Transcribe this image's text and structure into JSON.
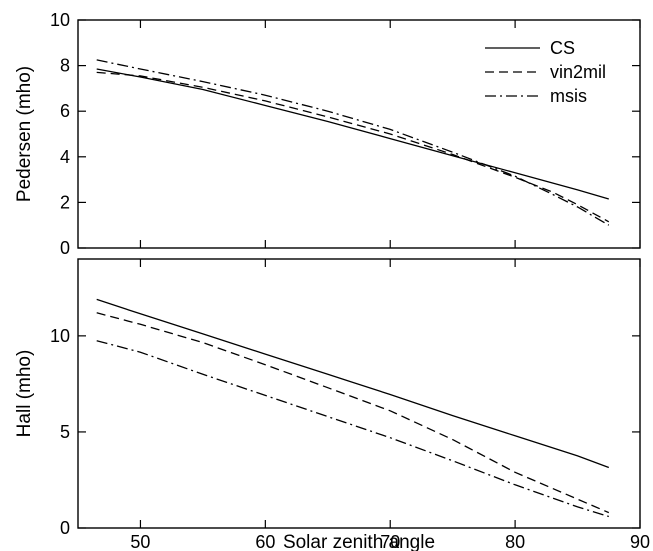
{
  "chart_data": [
    {
      "type": "line",
      "ylabel": "Pedersen (mho)",
      "xlabel": "",
      "xlim": [
        45,
        90
      ],
      "ylim": [
        0,
        10
      ],
      "xticks": [
        50,
        60,
        70,
        80,
        90
      ],
      "yticks": [
        0,
        2,
        4,
        6,
        8,
        10
      ],
      "show_x_tick_labels": false,
      "legend": "top-right",
      "series": [
        {
          "name": "CS",
          "style": "solid",
          "x": [
            46.5,
            50,
            55,
            60,
            65,
            70,
            75,
            80,
            85,
            87.5
          ],
          "y": [
            7.85,
            7.5,
            6.95,
            6.25,
            5.55,
            4.8,
            4.05,
            3.3,
            2.55,
            2.15
          ]
        },
        {
          "name": "vin2mil",
          "style": "dashed",
          "x": [
            46.5,
            50,
            55,
            60,
            65,
            70,
            75,
            80,
            83,
            85,
            87.5
          ],
          "y": [
            7.7,
            7.55,
            7.05,
            6.45,
            5.75,
            5.0,
            4.1,
            3.1,
            2.45,
            1.9,
            1.15
          ]
        },
        {
          "name": "msis",
          "style": "dashdot",
          "x": [
            46.5,
            50,
            55,
            60,
            65,
            70,
            75,
            80,
            83,
            85,
            87.5
          ],
          "y": [
            8.25,
            7.85,
            7.3,
            6.7,
            6.0,
            5.2,
            4.2,
            3.15,
            2.35,
            1.8,
            1.0
          ]
        }
      ]
    },
    {
      "type": "line",
      "ylabel": "Hall (mho)",
      "xlabel": "Solar zenith angle",
      "xlim": [
        45,
        90
      ],
      "ylim": [
        0,
        14
      ],
      "xticks": [
        50,
        60,
        70,
        80,
        90
      ],
      "yticks": [
        0,
        5,
        10
      ],
      "show_x_tick_labels": true,
      "series": [
        {
          "name": "CS",
          "style": "solid",
          "x": [
            46.5,
            50,
            55,
            60,
            65,
            70,
            75,
            80,
            85,
            87.5
          ],
          "y": [
            11.9,
            11.15,
            10.1,
            9.05,
            8.0,
            6.95,
            5.85,
            4.8,
            3.75,
            3.15
          ]
        },
        {
          "name": "vin2mil",
          "style": "dashed",
          "x": [
            46.5,
            50,
            55,
            60,
            65,
            70,
            75,
            80,
            85,
            87.5
          ],
          "y": [
            11.2,
            10.6,
            9.65,
            8.5,
            7.3,
            6.1,
            4.6,
            2.9,
            1.5,
            0.8
          ]
        },
        {
          "name": "msis",
          "style": "dashdot",
          "x": [
            46.5,
            50,
            55,
            60,
            65,
            70,
            75,
            80,
            85,
            87.5
          ],
          "y": [
            9.75,
            9.15,
            8.0,
            6.9,
            5.8,
            4.7,
            3.5,
            2.25,
            1.1,
            0.6
          ]
        }
      ]
    }
  ]
}
